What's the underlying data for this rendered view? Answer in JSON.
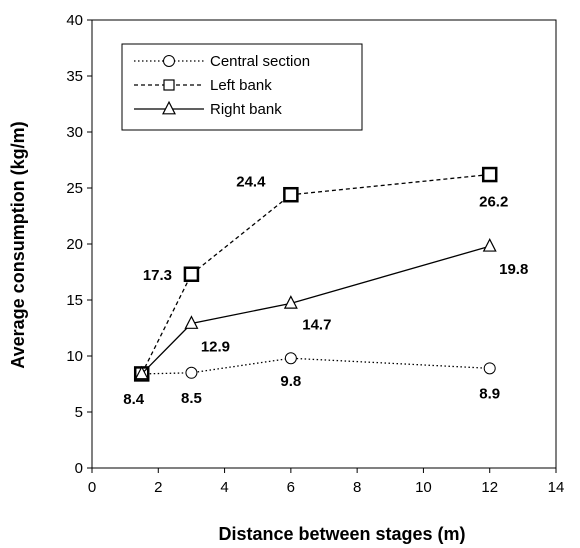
{
  "chart_data": {
    "type": "line",
    "xlabel": "Distance between stages (m)",
    "ylabel": "Average consumption (kg/m)",
    "xlim": [
      0,
      14
    ],
    "ylim": [
      0,
      40
    ],
    "x_ticks": [
      0,
      2,
      4,
      6,
      8,
      10,
      12,
      14
    ],
    "y_ticks": [
      0,
      5,
      10,
      15,
      20,
      25,
      30,
      35,
      40
    ],
    "grid": false,
    "legend_position": "top-left",
    "series": [
      {
        "name": "Central section",
        "marker": "circle",
        "line_style": "dotted",
        "x": [
          1.5,
          3,
          6,
          12
        ],
        "y": [
          8.4,
          8.5,
          9.8,
          8.9
        ],
        "labels": [
          "8.4",
          "8.5",
          "9.8",
          "8.9"
        ]
      },
      {
        "name": "Left bank",
        "marker": "square",
        "line_style": "dashed",
        "x": [
          1.5,
          3,
          6,
          12
        ],
        "y": [
          8.4,
          17.3,
          24.4,
          26.2
        ],
        "labels": [
          "",
          "17.3",
          "24.4",
          "26.2"
        ]
      },
      {
        "name": "Right bank",
        "marker": "triangle",
        "line_style": "solid",
        "x": [
          1.5,
          3,
          6,
          12
        ],
        "y": [
          8.4,
          12.9,
          14.7,
          19.8
        ],
        "labels": [
          "",
          "12.9",
          "14.7",
          "19.8"
        ]
      }
    ]
  }
}
